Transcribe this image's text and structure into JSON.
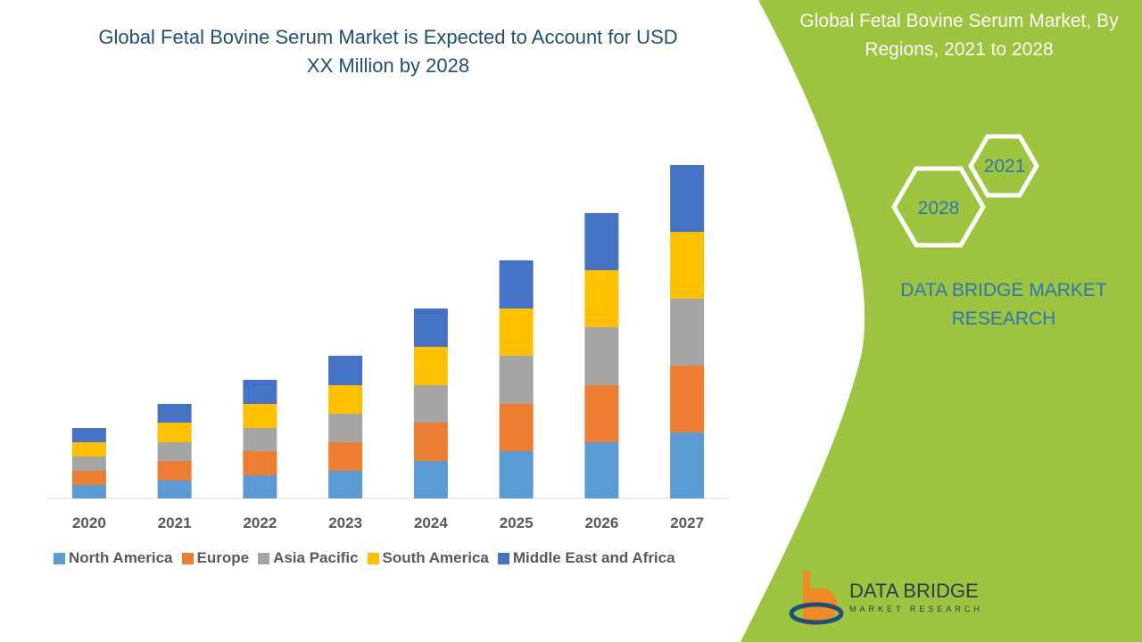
{
  "chart_data": {
    "type": "stacked-bar",
    "title": "Global Fetal Bovine Serum Market is Expected to Account for USD XX Million by 2028",
    "categories": [
      "2020",
      "2021",
      "2022",
      "2023",
      "2024",
      "2025",
      "2026",
      "2027"
    ],
    "series": [
      {
        "name": "North America",
        "color": "#5b9bd5",
        "values": [
          15,
          20,
          26,
          31,
          42,
          53,
          63,
          74
        ]
      },
      {
        "name": "Europe",
        "color": "#ed7d31",
        "values": [
          16,
          22,
          27,
          32,
          43,
          53,
          64,
          75
        ]
      },
      {
        "name": "Asia Pacific",
        "color": "#a5a5a5",
        "values": [
          16,
          21,
          26,
          32,
          42,
          54,
          65,
          75
        ]
      },
      {
        "name": "South America",
        "color": "#ffc000",
        "values": [
          16,
          22,
          27,
          32,
          43,
          53,
          64,
          75
        ]
      },
      {
        "name": "Middle East and Africa",
        "color": "#4472c4",
        "values": [
          16,
          21,
          27,
          33,
          43,
          54,
          64,
          75
        ]
      }
    ]
  },
  "panel": {
    "title": "Global Fetal Bovine Serum Market, By Regions, 2021 to 2028",
    "hex_labels": [
      "2021",
      "2028"
    ],
    "brand": "DATA BRIDGE MARKET RESEARCH",
    "logo_name": "DATA BRIDGE",
    "logo_tagline": "MARKET RESEARCH"
  }
}
